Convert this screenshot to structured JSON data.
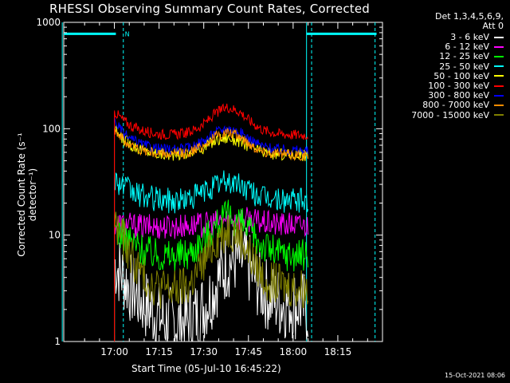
{
  "chart_data": {
    "type": "line",
    "title": "RHESSI Observing Summary Count Rates, Corrected",
    "xlabel": "Start Time (05-Jul-10 16:45:22)",
    "ylabel": "Corrected Count Rate (s⁻¹ detector⁻¹)",
    "ylog": true,
    "ylim": [
      1,
      1000
    ],
    "yticks": [
      "1",
      "10",
      "100",
      "1000"
    ],
    "xticks": [
      "17:00",
      "17:15",
      "17:30",
      "17:45",
      "18:00",
      "18:15"
    ],
    "xlim_minutes": [
      -17,
      90
    ],
    "xtick_minutes": [
      0,
      15,
      30,
      45,
      60,
      75
    ],
    "flag_annotation": "N",
    "series": [
      {
        "name": "3 - 6 keV",
        "color": "#ffffff",
        "x": [
          0,
          2,
          5,
          8,
          12,
          16,
          20,
          24,
          28,
          32,
          35,
          38,
          41,
          44,
          47,
          50,
          53,
          56,
          59,
          62,
          65
        ],
        "values": [
          5.5,
          4.5,
          3.3,
          2.6,
          2.0,
          1.6,
          1.5,
          1.5,
          1.8,
          2.6,
          4.0,
          5.5,
          6.0,
          5.5,
          4.0,
          3.0,
          2.5,
          2.3,
          2.3,
          2.2,
          2.0
        ]
      },
      {
        "name": "6 - 12 keV",
        "color": "#ff00ff",
        "x": [
          0,
          5,
          10,
          20,
          30,
          35,
          40,
          45,
          50,
          55,
          60,
          65
        ],
        "values": [
          13.0,
          12.5,
          12.0,
          12.0,
          12.5,
          13.5,
          14.5,
          14.0,
          13.0,
          12.5,
          12.5,
          12.3
        ]
      },
      {
        "name": "12 - 25 keV",
        "color": "#00ff00",
        "x": [
          0,
          3,
          6,
          10,
          15,
          20,
          25,
          30,
          34,
          38,
          42,
          46,
          50,
          54,
          58,
          62,
          65
        ],
        "values": [
          12.0,
          10.0,
          8.5,
          7.2,
          6.5,
          6.4,
          6.8,
          9.0,
          12.5,
          15.0,
          13.5,
          10.0,
          8.0,
          7.0,
          6.6,
          6.5,
          6.4
        ]
      },
      {
        "name": "25 - 50 keV",
        "color": "#00ffff",
        "x": [
          0,
          3,
          6,
          10,
          15,
          20,
          25,
          30,
          34,
          38,
          42,
          46,
          50,
          55,
          60,
          65
        ],
        "values": [
          34.0,
          29.0,
          25.0,
          23.0,
          21.5,
          21.0,
          22.0,
          25.5,
          29.5,
          32.0,
          30.0,
          25.5,
          22.5,
          21.5,
          21.0,
          21.0
        ]
      },
      {
        "name": "50 - 100 keV",
        "color": "#ffff00",
        "x": [
          0,
          3,
          6,
          10,
          15,
          20,
          25,
          30,
          34,
          38,
          42,
          46,
          50,
          55,
          60,
          65
        ],
        "values": [
          95.0,
          80.0,
          70.0,
          62.0,
          58.0,
          57.0,
          59.0,
          67.0,
          78.0,
          83.0,
          77.0,
          67.0,
          60.0,
          58.0,
          57.0,
          57.0
        ]
      },
      {
        "name": "100 - 300 keV",
        "color": "#ff0000",
        "x": [
          0,
          3,
          6,
          10,
          15,
          20,
          25,
          30,
          34,
          38,
          42,
          46,
          50,
          55,
          60,
          65
        ],
        "values": [
          145.0,
          120.0,
          105.0,
          95.0,
          89.0,
          88.0,
          92.0,
          110.0,
          140.0,
          160.0,
          145.0,
          115.0,
          97.0,
          90.0,
          88.0,
          87.0
        ]
      },
      {
        "name": "300 - 800 keV",
        "color": "#0000ff",
        "x": [
          0,
          3,
          6,
          10,
          15,
          20,
          25,
          30,
          34,
          38,
          42,
          46,
          50,
          55,
          60,
          65
        ],
        "values": [
          120.0,
          90.0,
          78.0,
          70.0,
          65.0,
          63.0,
          66.0,
          77.0,
          93.0,
          102.0,
          93.0,
          78.0,
          68.0,
          64.0,
          63.0,
          62.0
        ]
      },
      {
        "name": "800 - 7000 keV",
        "color": "#ff8c00",
        "x": [
          0,
          3,
          6,
          10,
          15,
          20,
          25,
          30,
          34,
          38,
          42,
          46,
          50,
          55,
          60,
          65
        ],
        "values": [
          100.0,
          78.0,
          68.0,
          62.0,
          58.0,
          57.0,
          60.0,
          70.0,
          85.0,
          92.0,
          85.0,
          70.0,
          61.0,
          58.0,
          57.0,
          56.0
        ]
      },
      {
        "name": "7000 - 15000 keV",
        "color": "#808000",
        "x": [
          0,
          3,
          6,
          10,
          15,
          20,
          25,
          30,
          34,
          38,
          42,
          46,
          50,
          55,
          60,
          65
        ],
        "values": [
          13.0,
          9.0,
          6.0,
          4.0,
          3.2,
          3.0,
          3.3,
          5.5,
          9.0,
          11.5,
          10.0,
          6.0,
          4.0,
          3.4,
          3.2,
          3.1
        ]
      }
    ]
  },
  "legend_head": [
    "Det 1,3,4,5,6,9,",
    "Att 0"
  ],
  "timestamp": "15-Oct-2021 08:06"
}
